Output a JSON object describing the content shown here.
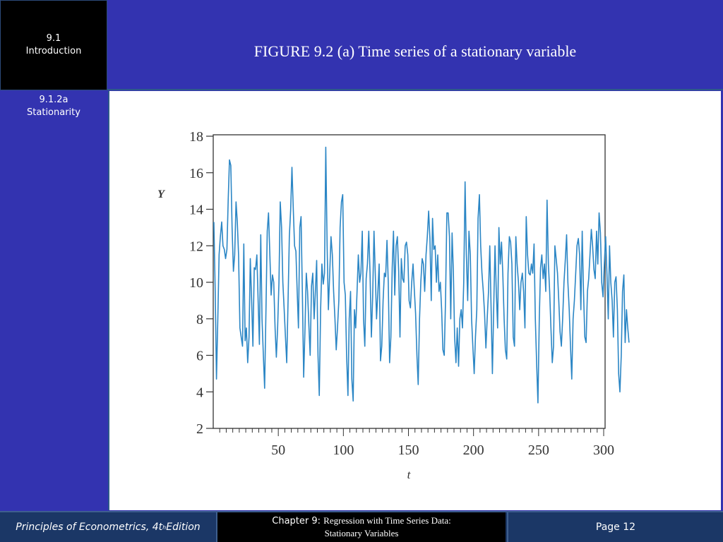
{
  "nav": {
    "section_number": "9.1",
    "section_title": "Introduction",
    "subsection_number": "9.1.2a",
    "subsection_title": "Stationarity"
  },
  "header": {
    "title": "FIGURE 9.2 (a) Time series of a stationary variable"
  },
  "footer": {
    "book_prefix": "Principles of Econometrics, 4t",
    "book_sup": "h",
    "book_suffix": " Edition",
    "chapter_label": "Chapter 9:",
    "chapter_title_line1": "Regression with Time Series Data:",
    "chapter_title_line2": "Stationary Variables",
    "page": "Page 12"
  },
  "colors": {
    "background_blue": "#3333b0",
    "footer_navy": "#1b3766",
    "series_line": "#2b86c5"
  },
  "chart_data": {
    "type": "line",
    "title": "FIGURE 9.2 (a) Time series of a stationary variable",
    "xlabel": "t",
    "ylabel": "Y",
    "xlim": [
      0,
      300
    ],
    "ylim": [
      2,
      18
    ],
    "xticks": [
      50,
      100,
      150,
      200,
      250,
      300
    ],
    "yticks": [
      2,
      4,
      6,
      8,
      10,
      12,
      14,
      16,
      18
    ],
    "x_minor_tick_step": 5,
    "grid": false,
    "legend": null,
    "series": [
      {
        "name": "Y",
        "x_start": 1,
        "values": [
          13.3,
          9.5,
          4.7,
          8.0,
          11.5,
          12.5,
          13.3,
          12.0,
          11.8,
          11.3,
          11.8,
          14.5,
          16.7,
          16.4,
          13.0,
          10.6,
          11.5,
          14.4,
          13.3,
          11.5,
          7.5,
          7.0,
          6.5,
          12.1,
          6.8,
          7.5,
          5.6,
          7.0,
          11.3,
          9.0,
          6.5,
          10.8,
          10.7,
          11.5,
          9.0,
          6.6,
          12.6,
          8.0,
          6.0,
          4.2,
          8.5,
          12.8,
          13.8,
          11.5,
          9.3,
          10.4,
          10.0,
          7.5,
          5.9,
          7.5,
          10.0,
          14.4,
          13.0,
          10.0,
          8.5,
          7.0,
          5.6,
          9.0,
          12.5,
          14.0,
          16.3,
          14.0,
          12.0,
          11.7,
          9.5,
          7.5,
          13.0,
          13.6,
          9.3,
          4.8,
          7.5,
          10.5,
          9.5,
          7.6,
          6.0,
          9.8,
          10.5,
          8.0,
          9.5,
          11.2,
          6.0,
          3.8,
          8.5,
          11.0,
          9.9,
          10.5,
          17.4,
          12.0,
          8.5,
          10.5,
          12.5,
          11.5,
          9.5,
          8.0,
          6.3,
          7.5,
          9.0,
          13.0,
          14.4,
          14.8,
          10.0,
          9.3,
          6.0,
          3.8,
          8.0,
          9.5,
          4.7,
          3.5,
          8.5,
          7.5,
          9.5,
          11.5,
          10.0,
          10.5,
          12.8,
          8.0,
          6.5,
          10.2,
          11.0,
          12.8,
          10.5,
          7.0,
          9.2,
          12.8,
          10.5,
          8.0,
          9.5,
          11.0,
          5.7,
          6.5,
          9.0,
          10.5,
          10.3,
          12.3,
          10.0,
          5.6,
          7.0,
          10.8,
          12.8,
          9.3,
          12.0,
          12.5,
          10.6,
          7.0,
          11.3,
          10.2,
          10.0,
          12.0,
          12.2,
          11.5,
          9.0,
          8.6,
          10.0,
          11.0,
          9.6,
          8.3,
          6.0,
          4.4,
          8.0,
          10.0,
          11.3,
          11.0,
          9.5,
          11.5,
          12.5,
          13.9,
          12.4,
          9.0,
          13.5,
          11.8,
          12.0,
          10.0,
          11.5,
          9.5,
          10.0,
          8.5,
          6.3,
          6.0,
          9.0,
          13.8,
          13.8,
          12.5,
          8.0,
          12.7,
          10.6,
          7.0,
          5.6,
          7.5,
          5.4,
          8.0,
          8.5,
          7.5,
          10.0,
          15.5,
          11.5,
          9.0,
          12.8,
          11.5,
          8.0,
          6.5,
          5.0,
          7.0,
          8.5,
          13.5,
          14.8,
          12.0,
          10.5,
          9.5,
          8.3,
          6.4,
          8.0,
          9.5,
          12.0,
          8.5,
          5.0,
          8.5,
          12.0,
          9.5,
          7.5,
          13.0,
          11.0,
          12.2,
          10.5,
          8.0,
          6.3,
          5.8,
          10.5,
          12.5,
          12.2,
          11.0,
          7.0,
          6.5,
          12.5,
          11.0,
          10.0,
          8.5,
          10.0,
          10.5,
          9.5,
          7.5,
          13.6,
          11.5,
          10.5,
          10.4,
          11.0,
          10.5,
          12.1,
          8.0,
          5.5,
          3.4,
          8.0,
          10.8,
          11.5,
          10.2,
          11.0,
          9.5,
          14.5,
          11.0,
          9.5,
          7.5,
          5.6,
          6.5,
          12.0,
          11.3,
          10.5,
          9.0,
          7.3,
          6.5,
          8.0,
          10.0,
          11.2,
          12.6,
          10.0,
          8.5,
          6.5,
          4.7,
          8.0,
          9.0,
          10.5,
          12.0,
          12.4,
          11.5,
          8.5,
          12.8,
          9.5,
          7.0,
          6.7,
          9.5,
          10.2,
          11.5,
          12.9,
          12.0,
          10.7,
          10.2,
          12.8,
          11.0,
          13.8,
          12.7,
          10.0,
          9.2,
          11.0,
          12.5,
          10.5,
          8.0,
          12.0,
          10.0,
          9.0,
          7.0,
          10.0,
          10.3,
          8.5,
          5.0,
          4.0,
          6.0,
          9.5,
          10.4,
          6.7,
          8.5,
          7.5,
          6.7
        ]
      }
    ]
  }
}
